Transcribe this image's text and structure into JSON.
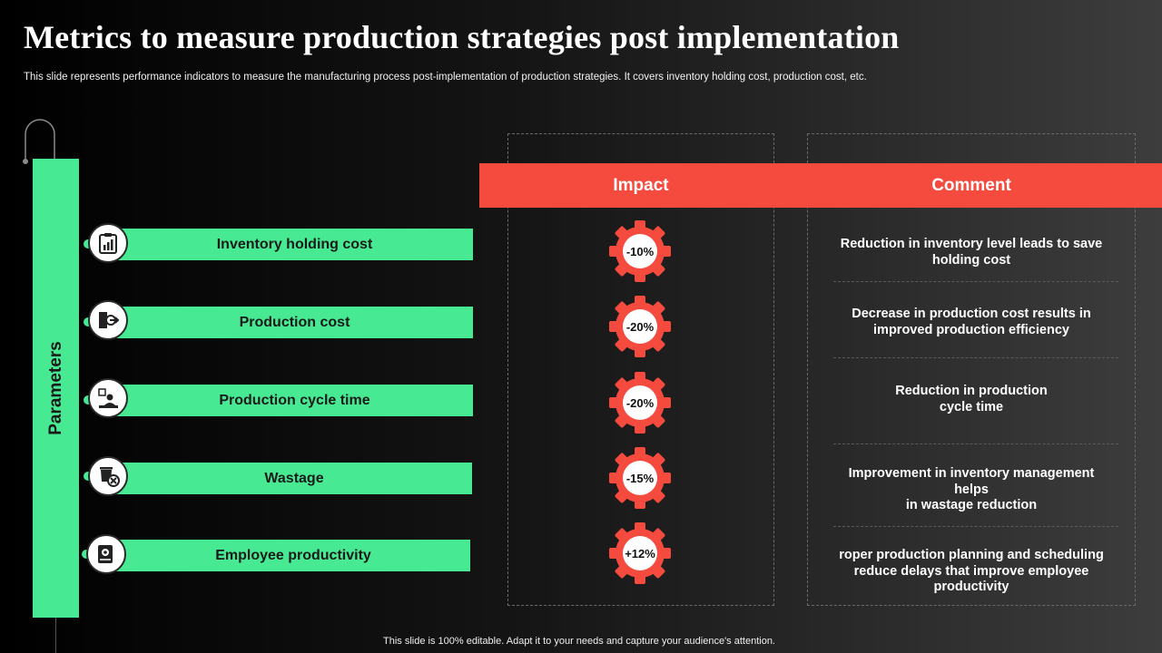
{
  "title": "Metrics to measure production strategies post implementation",
  "subtitle": "This slide represents performance indicators to measure the manufacturing process post-implementation of production strategies. It covers inventory holding cost, production cost, etc.",
  "parameters_label": "Parameters",
  "headers": {
    "impact": "Impact",
    "comment": "Comment"
  },
  "rows": [
    {
      "label": "Inventory holding cost",
      "impact": "-10%",
      "icon": "clipboard-chart-icon",
      "comment": "Reduction in inventory level leads to save\nholding cost"
    },
    {
      "label": "Production cost",
      "impact": "-20%",
      "icon": "door-exit-icon",
      "comment": "Decrease in production cost results in\nimproved production efficiency"
    },
    {
      "label": "Production cycle time",
      "impact": "-20%",
      "icon": "worker-desk-clock-icon",
      "comment": "Reduction in production\ncycle time"
    },
    {
      "label": "Wastage",
      "impact": "-15%",
      "icon": "waste-bin-cancel-icon",
      "comment": "Improvement in inventory management\nhelps\nin wastage reduction"
    },
    {
      "label": "Employee productivity",
      "impact": "+12%",
      "icon": "employee-gear-icon",
      "comment": "roper production planning and scheduling\nreduce delays that improve employee\nproductivity"
    }
  ],
  "footer": "This slide is 100% editable.  Adapt it to your needs and capture your audience's attention.",
  "colors": {
    "accent_green": "#47ea92",
    "accent_red": "#f44b3e",
    "background": "#000000"
  }
}
